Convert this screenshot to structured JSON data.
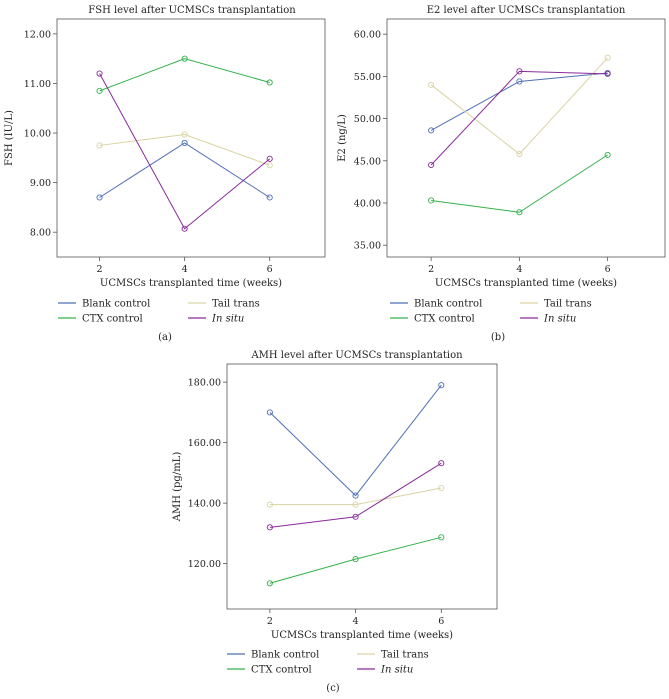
{
  "colors": {
    "blank": "#4f6fb8",
    "ctx": "#33b24a",
    "tail": "#d9d3a2",
    "insitu": "#8a2a9c",
    "frame": "#555555"
  },
  "chart_data": [
    {
      "type": "line",
      "panel": "(a)",
      "title": "FSH level after UCMSCs transplantation",
      "xlabel": "UCMSCs transplanted time (weeks)",
      "ylabel": "FSH (IU/L)",
      "x": [
        2,
        4,
        6
      ],
      "xticks": [
        "2",
        "4",
        "6"
      ],
      "xlim": [
        1,
        7.3
      ],
      "ylim": [
        7.5,
        12.3
      ],
      "yticks": [
        "8.00",
        "9.00",
        "10.00",
        "11.00",
        "12.00"
      ],
      "ytick_values": [
        8,
        9,
        10,
        11,
        12
      ],
      "series": [
        {
          "name": "Blank control",
          "key": "blank",
          "values": [
            8.7,
            9.8,
            8.7
          ]
        },
        {
          "name": "CTX control",
          "key": "ctx",
          "values": [
            10.85,
            11.5,
            11.02
          ]
        },
        {
          "name": "Tail trans",
          "key": "tail",
          "values": [
            9.75,
            9.97,
            9.35
          ]
        },
        {
          "name": "In situ",
          "key": "insitu",
          "italic": true,
          "values": [
            11.2,
            8.07,
            9.48
          ]
        }
      ]
    },
    {
      "type": "line",
      "panel": "(b)",
      "title": "E2 level after UCMSCs transplantation",
      "xlabel": "UCMSCs transplanted time (weeks)",
      "ylabel": "E2 (ng/L)",
      "x": [
        2,
        4,
        6
      ],
      "xticks": [
        "2",
        "4",
        "6"
      ],
      "xlim": [
        1,
        7.3
      ],
      "ylim": [
        33.6,
        61.8
      ],
      "yticks": [
        "35.00",
        "40.00",
        "45.00",
        "50.00",
        "55.00",
        "60.00"
      ],
      "ytick_values": [
        35,
        40,
        45,
        50,
        55,
        60
      ],
      "series": [
        {
          "name": "Blank control",
          "key": "blank",
          "values": [
            48.6,
            54.4,
            55.4
          ]
        },
        {
          "name": "CTX control",
          "key": "ctx",
          "values": [
            40.3,
            38.9,
            45.7
          ]
        },
        {
          "name": "Tail trans",
          "key": "tail",
          "values": [
            54.0,
            45.8,
            57.2
          ]
        },
        {
          "name": "In situ",
          "key": "insitu",
          "italic": true,
          "values": [
            44.5,
            55.6,
            55.3
          ]
        }
      ]
    },
    {
      "type": "line",
      "panel": "(c)",
      "title": "AMH level after UCMSCs transplantation",
      "xlabel": "UCMSCs transplanted time (weeks)",
      "ylabel": "AMH (pg/mL)",
      "x": [
        2,
        4,
        6
      ],
      "xticks": [
        "2",
        "4",
        "6"
      ],
      "xlim": [
        1,
        7.3
      ],
      "ylim": [
        105,
        186
      ],
      "yticks": [
        "120.00",
        "140.00",
        "160.00",
        "180.00"
      ],
      "ytick_values": [
        120,
        140,
        160,
        180
      ],
      "series": [
        {
          "name": "Blank control",
          "key": "blank",
          "values": [
            170.0,
            142.5,
            179.0
          ]
        },
        {
          "name": "CTX control",
          "key": "ctx",
          "values": [
            113.5,
            121.5,
            128.7
          ]
        },
        {
          "name": "Tail trans",
          "key": "tail",
          "values": [
            139.5,
            139.5,
            145.0
          ]
        },
        {
          "name": "In situ",
          "key": "insitu",
          "italic": true,
          "values": [
            132.0,
            135.5,
            153.2
          ]
        }
      ]
    }
  ]
}
